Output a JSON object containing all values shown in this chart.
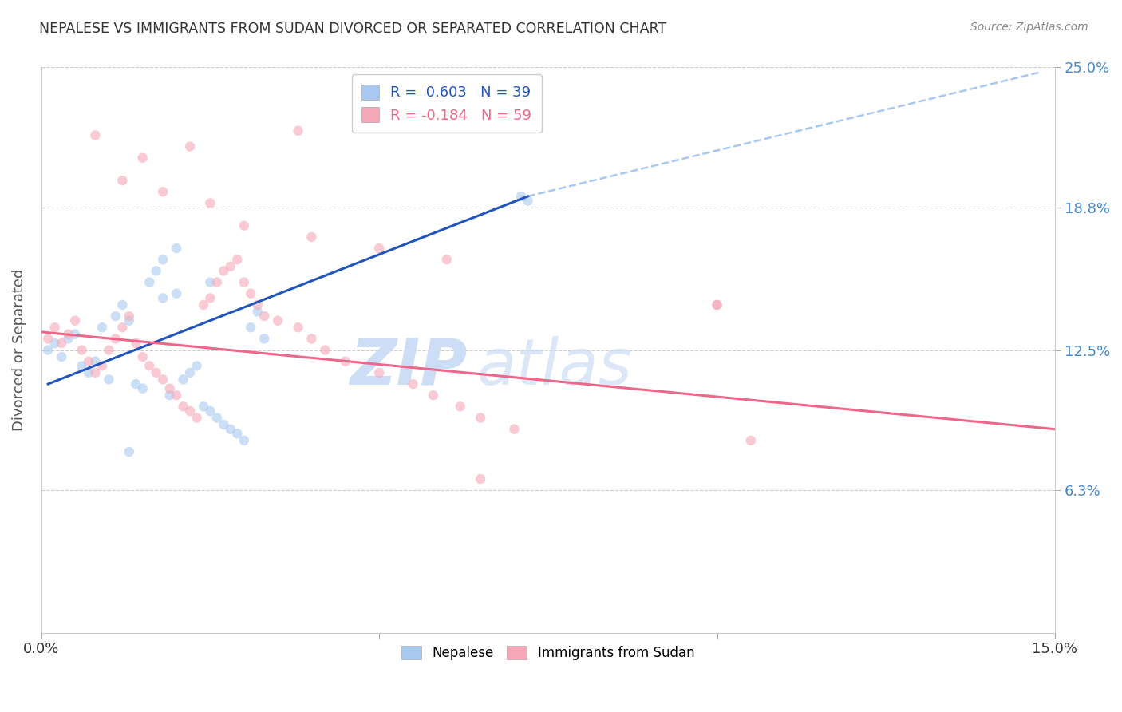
{
  "title": "NEPALESE VS IMMIGRANTS FROM SUDAN DIVORCED OR SEPARATED CORRELATION CHART",
  "source": "Source: ZipAtlas.com",
  "ylabel": "Divorced or Separated",
  "xlim": [
    0.0,
    0.15
  ],
  "ylim": [
    0.0,
    0.25
  ],
  "yticks": [
    0.063,
    0.125,
    0.188,
    0.25
  ],
  "ytick_labels": [
    "6.3%",
    "12.5%",
    "18.8%",
    "25.0%"
  ],
  "xticks": [
    0.0,
    0.05,
    0.1,
    0.15
  ],
  "xtick_labels": [
    "0.0%",
    "",
    "",
    "15.0%"
  ],
  "legend_r1": "R =  0.603",
  "legend_n1": "N = 39",
  "legend_r2": "R = -0.184",
  "legend_n2": "N = 59",
  "blue_color": "#A8C8F0",
  "pink_color": "#F5A8B8",
  "blue_line_color": "#2255BB",
  "pink_line_color": "#EE6688",
  "dashed_line_color": "#A8C8F0",
  "marker_size": 80,
  "marker_alpha": 0.6,
  "blue_scatter_x": [
    0.001,
    0.002,
    0.003,
    0.004,
    0.005,
    0.006,
    0.007,
    0.008,
    0.009,
    0.01,
    0.011,
    0.012,
    0.013,
    0.014,
    0.015,
    0.016,
    0.017,
    0.018,
    0.019,
    0.02,
    0.021,
    0.022,
    0.023,
    0.024,
    0.025,
    0.026,
    0.027,
    0.028,
    0.029,
    0.03,
    0.031,
    0.032,
    0.033,
    0.018,
    0.02,
    0.025,
    0.071,
    0.072,
    0.013
  ],
  "blue_scatter_y": [
    0.125,
    0.128,
    0.122,
    0.13,
    0.132,
    0.118,
    0.115,
    0.12,
    0.135,
    0.112,
    0.14,
    0.145,
    0.138,
    0.11,
    0.108,
    0.155,
    0.16,
    0.148,
    0.105,
    0.15,
    0.112,
    0.115,
    0.118,
    0.1,
    0.098,
    0.095,
    0.092,
    0.09,
    0.088,
    0.085,
    0.135,
    0.142,
    0.13,
    0.165,
    0.17,
    0.155,
    0.193,
    0.191,
    0.08
  ],
  "pink_scatter_x": [
    0.001,
    0.002,
    0.003,
    0.004,
    0.005,
    0.006,
    0.007,
    0.008,
    0.009,
    0.01,
    0.011,
    0.012,
    0.013,
    0.014,
    0.015,
    0.016,
    0.017,
    0.018,
    0.019,
    0.02,
    0.021,
    0.022,
    0.023,
    0.024,
    0.025,
    0.026,
    0.027,
    0.028,
    0.029,
    0.03,
    0.031,
    0.032,
    0.033,
    0.035,
    0.038,
    0.04,
    0.042,
    0.045,
    0.05,
    0.055,
    0.058,
    0.062,
    0.065,
    0.07,
    0.1,
    0.105,
    0.038,
    0.022,
    0.015,
    0.008,
    0.012,
    0.018,
    0.025,
    0.03,
    0.04,
    0.05,
    0.06,
    0.1,
    0.065
  ],
  "pink_scatter_y": [
    0.13,
    0.135,
    0.128,
    0.132,
    0.138,
    0.125,
    0.12,
    0.115,
    0.118,
    0.125,
    0.13,
    0.135,
    0.14,
    0.128,
    0.122,
    0.118,
    0.115,
    0.112,
    0.108,
    0.105,
    0.1,
    0.098,
    0.095,
    0.145,
    0.148,
    0.155,
    0.16,
    0.162,
    0.165,
    0.155,
    0.15,
    0.145,
    0.14,
    0.138,
    0.135,
    0.13,
    0.125,
    0.12,
    0.115,
    0.11,
    0.105,
    0.1,
    0.095,
    0.09,
    0.145,
    0.085,
    0.222,
    0.215,
    0.21,
    0.22,
    0.2,
    0.195,
    0.19,
    0.18,
    0.175,
    0.17,
    0.165,
    0.145,
    0.068
  ],
  "blue_line_x": [
    0.001,
    0.072
  ],
  "blue_line_y": [
    0.11,
    0.193
  ],
  "pink_line_x": [
    0.0,
    0.15
  ],
  "pink_line_y": [
    0.133,
    0.09
  ],
  "dashed_line_x": [
    0.072,
    0.148
  ],
  "dashed_line_y": [
    0.193,
    0.248
  ],
  "watermark_zip": "ZIP",
  "watermark_atlas": "atlas",
  "watermark_color": "#CCDDF5",
  "background_color": "#FFFFFF",
  "grid_color": "#CCCCCC"
}
